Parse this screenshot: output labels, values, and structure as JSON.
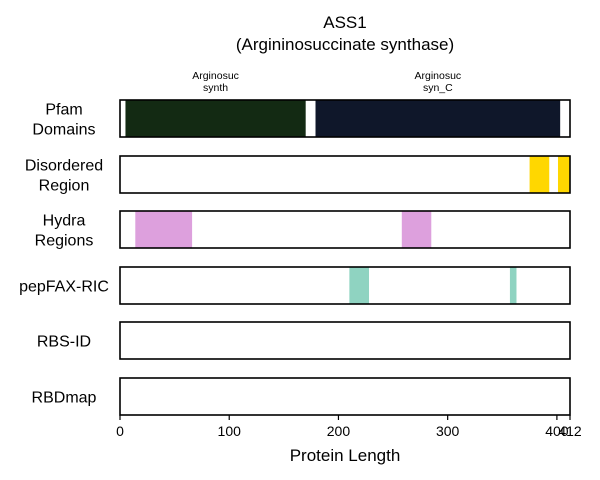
{
  "chart_data": {
    "type": "track",
    "title_line1": "ASS1",
    "title_line2": "(Argininosuccinate synthase)",
    "xlabel": "Protein Length",
    "xlim": [
      0,
      412
    ],
    "xticks": [
      {
        "value": 0,
        "label": "0"
      },
      {
        "value": 100,
        "label": "100"
      },
      {
        "value": 200,
        "label": "200"
      },
      {
        "value": 300,
        "label": "300"
      },
      {
        "value": 400,
        "label": "400"
      },
      {
        "value": 412,
        "label": "412"
      }
    ],
    "grid_lines": [
      100,
      200,
      300,
      400
    ],
    "tracks": [
      {
        "name": "Pfam Domains",
        "label_lines": [
          "Pfam",
          "Domains"
        ],
        "segments": [
          {
            "start": 5,
            "end": 170,
            "color": "#132a13",
            "label_lines": [
              "Arginosuc",
              "synth"
            ]
          },
          {
            "start": 179,
            "end": 403,
            "color": "#0f172a",
            "label_lines": [
              "Arginosuc",
              "syn_C"
            ]
          }
        ]
      },
      {
        "name": "Disordered Region",
        "label_lines": [
          "Disordered",
          "Region"
        ],
        "segments": [
          {
            "start": 375,
            "end": 393,
            "color": "#ffd700"
          },
          {
            "start": 401,
            "end": 412,
            "color": "#ffd700"
          }
        ]
      },
      {
        "name": "Hydra Regions",
        "label_lines": [
          "Hydra",
          "Regions"
        ],
        "segments": [
          {
            "start": 14,
            "end": 66,
            "color": "#dda0dd"
          },
          {
            "start": 258,
            "end": 285,
            "color": "#dda0dd"
          }
        ]
      },
      {
        "name": "pepFAX-RIC",
        "label_lines": [
          "pepFAX-RIC"
        ],
        "segments": [
          {
            "start": 210,
            "end": 228,
            "color": "#8fd3c1"
          },
          {
            "start": 357,
            "end": 363,
            "color": "#8fd3c1"
          }
        ]
      },
      {
        "name": "RBS-ID",
        "label_lines": [
          "RBS-ID"
        ],
        "segments": []
      },
      {
        "name": "RBDmap",
        "label_lines": [
          "RBDmap"
        ],
        "segments": []
      }
    ]
  }
}
